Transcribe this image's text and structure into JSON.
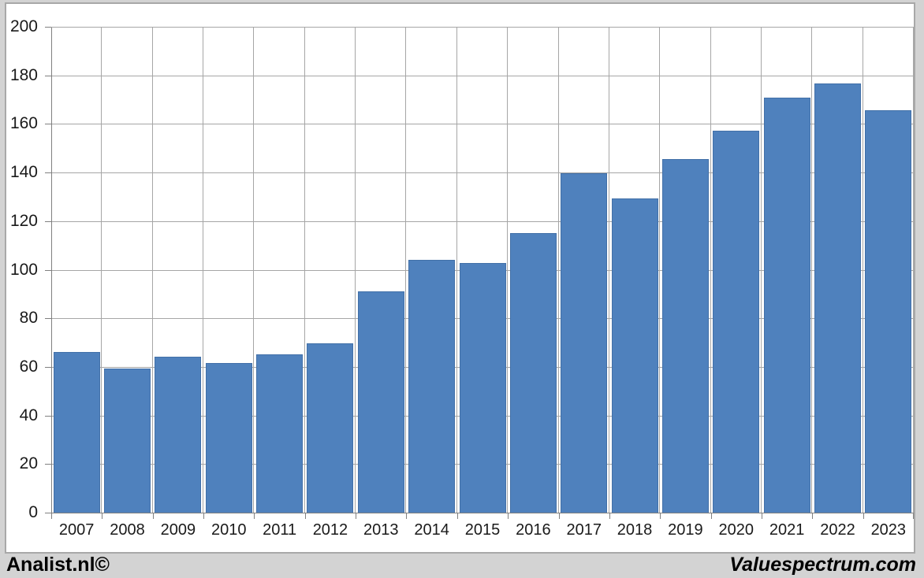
{
  "chart_data": {
    "type": "bar",
    "categories": [
      "2007",
      "2008",
      "2009",
      "2010",
      "2011",
      "2012",
      "2013",
      "2014",
      "2015",
      "2016",
      "2017",
      "2018",
      "2019",
      "2020",
      "2021",
      "2022",
      "2023"
    ],
    "values": [
      66.5,
      59.5,
      64.5,
      62,
      65.5,
      70,
      91.5,
      104.5,
      103,
      115.5,
      140,
      129.5,
      146,
      157.5,
      171,
      177,
      166
    ],
    "title": "",
    "xlabel": "",
    "ylabel": "",
    "ylim": [
      0,
      200
    ],
    "yticks": [
      0,
      20,
      40,
      60,
      80,
      100,
      120,
      140,
      160,
      180,
      200
    ],
    "grid": true,
    "legend": "none",
    "bar_color": "#4f81bd",
    "gridline_color": "#a6a6a6",
    "axis_color": "#808080",
    "plot_background": "#ffffff",
    "page_background": "#d3d3d3"
  },
  "footer": {
    "left_label": "Analist.nl©",
    "right_label": "Valuespectrum.com"
  }
}
